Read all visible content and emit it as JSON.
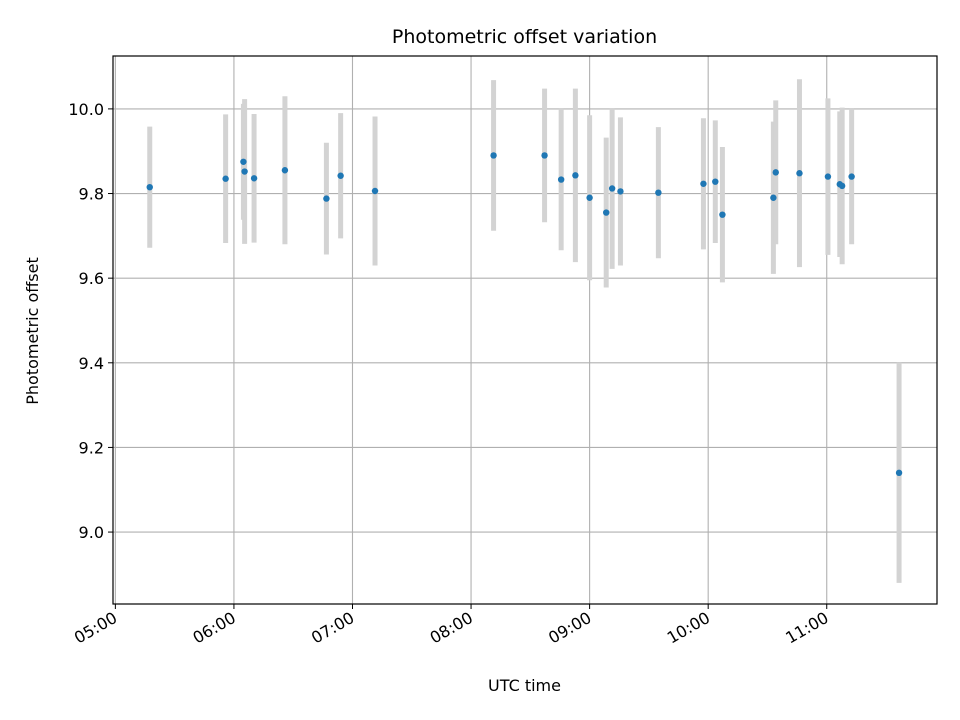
{
  "chart_data": {
    "type": "scatter",
    "title": "Photometric offset variation",
    "xlabel": "UTC time",
    "ylabel": "Photometric offset",
    "x_unit": "UTC time (hours)",
    "xlim": [
      4.98,
      11.93
    ],
    "ylim": [
      8.83,
      10.125
    ],
    "grid": true,
    "x_ticks": [
      {
        "value": 5,
        "label": "05:00"
      },
      {
        "value": 6,
        "label": "06:00"
      },
      {
        "value": 7,
        "label": "07:00"
      },
      {
        "value": 8,
        "label": "08:00"
      },
      {
        "value": 9,
        "label": "09:00"
      },
      {
        "value": 10,
        "label": "10:00"
      },
      {
        "value": 11,
        "label": "11:00"
      }
    ],
    "y_ticks": [
      {
        "value": 9.0,
        "label": "9.0"
      },
      {
        "value": 9.2,
        "label": "9.2"
      },
      {
        "value": 9.4,
        "label": "9.4"
      },
      {
        "value": 9.6,
        "label": "9.6"
      },
      {
        "value": 9.8,
        "label": "9.8"
      },
      {
        "value": 10.0,
        "label": "10.0"
      }
    ],
    "colors": {
      "points": "#1f77b4",
      "errorbars": "#d3d3d3",
      "grid": "#b0b0b0",
      "axes": "#000000"
    },
    "points": [
      {
        "x": 5.29,
        "y": 9.815,
        "err": 0.143
      },
      {
        "x": 5.93,
        "y": 9.835,
        "err": 0.152
      },
      {
        "x": 6.08,
        "y": 9.875,
        "err": 0.137
      },
      {
        "x": 6.09,
        "y": 9.852,
        "err": 0.171
      },
      {
        "x": 6.17,
        "y": 9.836,
        "err": 0.152
      },
      {
        "x": 6.43,
        "y": 9.855,
        "err": 0.175
      },
      {
        "x": 6.78,
        "y": 9.788,
        "err": 0.132
      },
      {
        "x": 6.9,
        "y": 9.842,
        "err": 0.148
      },
      {
        "x": 7.19,
        "y": 9.806,
        "err": 0.176
      },
      {
        "x": 8.19,
        "y": 9.89,
        "err": 0.178
      },
      {
        "x": 8.62,
        "y": 9.89,
        "err": 0.158
      },
      {
        "x": 8.76,
        "y": 9.833,
        "err": 0.167
      },
      {
        "x": 8.88,
        "y": 9.843,
        "err": 0.205
      },
      {
        "x": 9.0,
        "y": 9.79,
        "err": 0.195
      },
      {
        "x": 9.14,
        "y": 9.755,
        "err": 0.177
      },
      {
        "x": 9.19,
        "y": 9.812,
        "err": 0.19
      },
      {
        "x": 9.26,
        "y": 9.805,
        "err": 0.175
      },
      {
        "x": 9.58,
        "y": 9.802,
        "err": 0.155
      },
      {
        "x": 9.96,
        "y": 9.823,
        "err": 0.155
      },
      {
        "x": 10.06,
        "y": 9.828,
        "err": 0.145
      },
      {
        "x": 10.12,
        "y": 9.75,
        "err": 0.16
      },
      {
        "x": 10.55,
        "y": 9.79,
        "err": 0.18
      },
      {
        "x": 10.57,
        "y": 9.85,
        "err": 0.17
      },
      {
        "x": 10.77,
        "y": 9.848,
        "err": 0.222
      },
      {
        "x": 11.01,
        "y": 9.84,
        "err": 0.185
      },
      {
        "x": 11.11,
        "y": 9.822,
        "err": 0.172
      },
      {
        "x": 11.13,
        "y": 9.818,
        "err": 0.185
      },
      {
        "x": 11.21,
        "y": 9.84,
        "err": 0.16
      },
      {
        "x": 11.61,
        "y": 9.14,
        "err": 0.26
      }
    ]
  }
}
